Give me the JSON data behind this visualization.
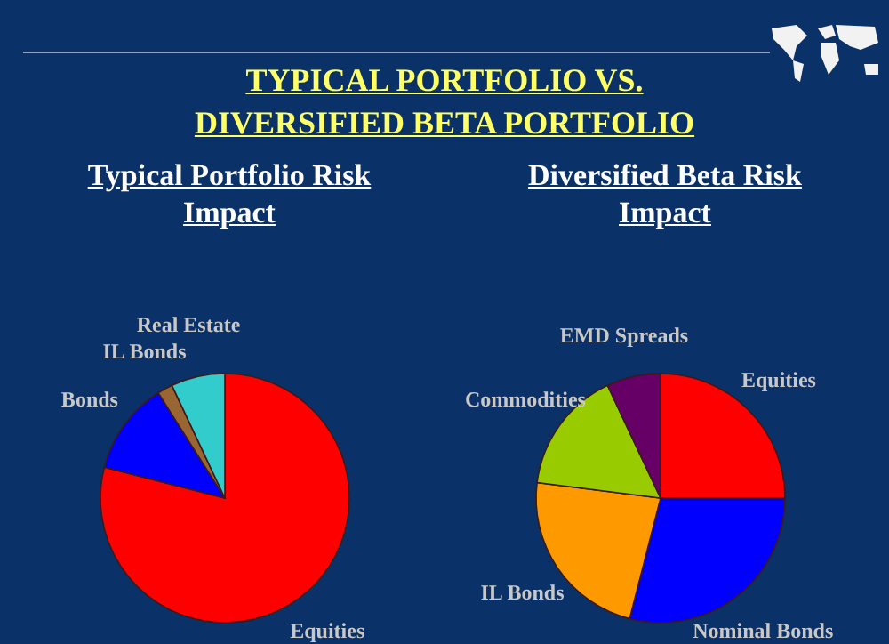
{
  "chart_data": [
    {
      "type": "pie",
      "title": "Typical Portfolio Risk Impact",
      "annotations": [
        "TYPICAL PORTFOLIO VS. DIVERSIFIED BETA PORTFOLIO"
      ],
      "categories": [
        "Equities",
        "Bonds",
        "IL Bonds",
        "Real Estate"
      ],
      "values": [
        79,
        12,
        2,
        7
      ],
      "colors": [
        "#ff0000",
        "#0000ff",
        "#996633",
        "#33cccc"
      ]
    },
    {
      "type": "pie",
      "title": "Diversified Beta Risk Impact",
      "categories": [
        "Equities",
        "Nominal Bonds",
        "IL Bonds",
        "Commodities",
        "EMD Spreads"
      ],
      "values": [
        25,
        29,
        23,
        16,
        7
      ],
      "colors": [
        "#ff0000",
        "#0000ff",
        "#ff9900",
        "#99cc00",
        "#660066"
      ]
    }
  ]
}
